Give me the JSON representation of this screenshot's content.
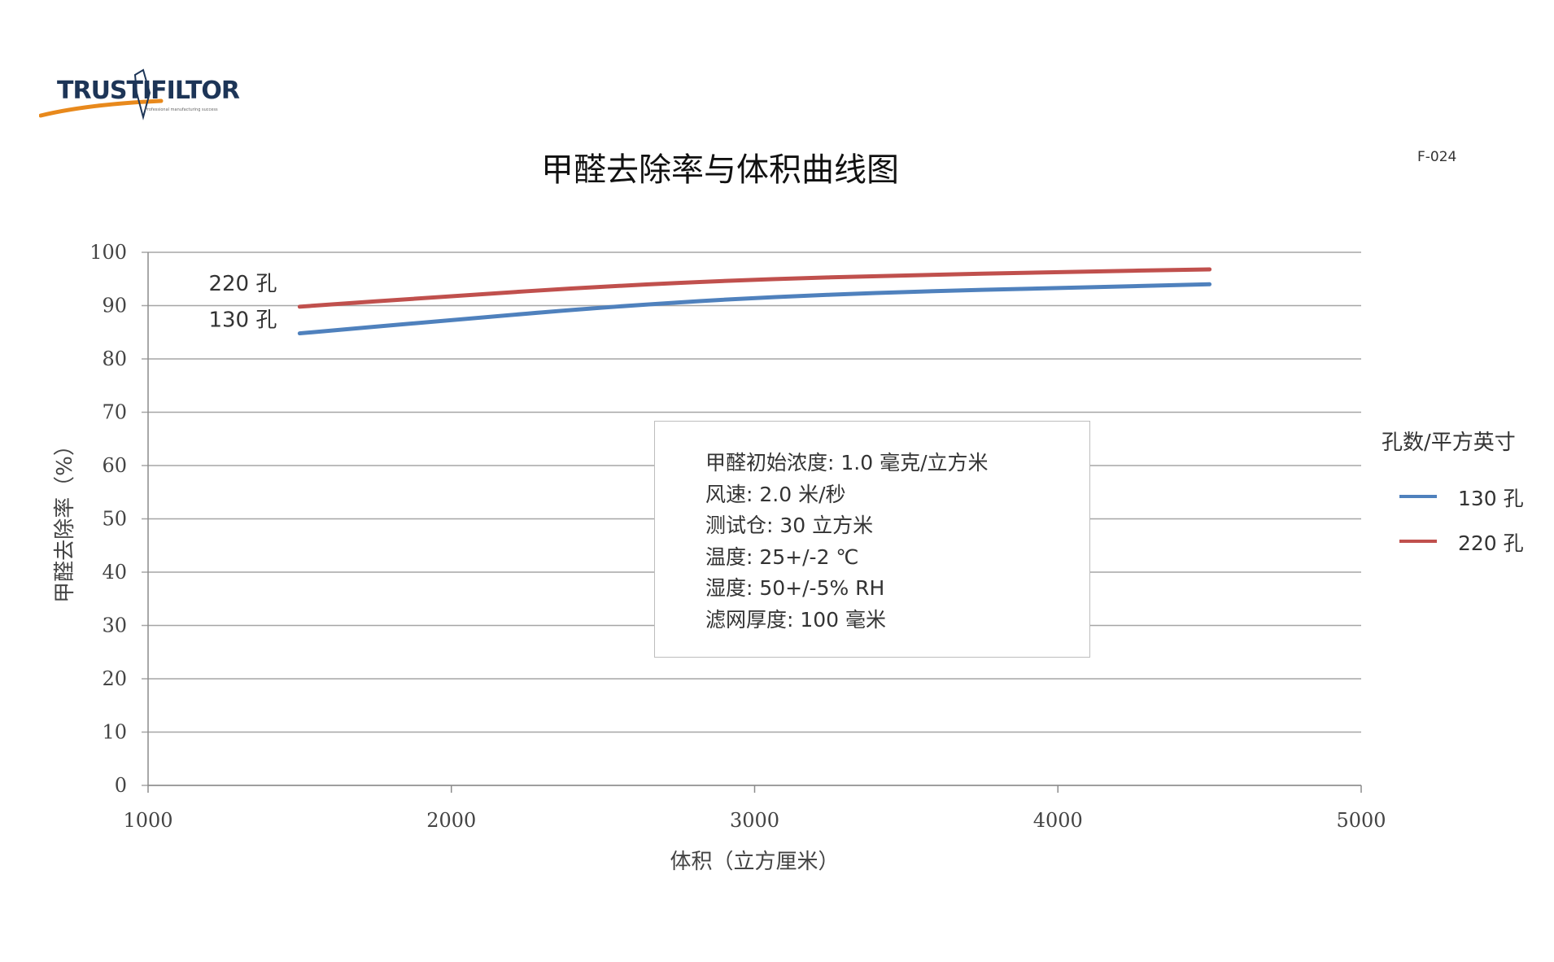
{
  "brand": {
    "name": "TRUSTIFILTOR",
    "tagline": "Professional manufacturing success",
    "code": "F-024"
  },
  "colors": {
    "series_130": "#4f81bd",
    "series_220": "#c0504d",
    "grid": "#a6a6a6",
    "brand_navy": "#1d3557",
    "brand_orange": "#e8891c"
  },
  "notes": {
    "lines": [
      "甲醛初始浓度: 1.0 毫克/立方米",
      "风速: 2.0 米/秒",
      "测试仓: 30 立方米",
      "温度: 25+/-2 ℃",
      "湿度: 50+/-5% RH",
      "滤网厚度: 100 毫米"
    ]
  },
  "chart_data": {
    "type": "line",
    "title": "甲醛去除率与体积曲线图",
    "xlabel": "体积（立方厘米）",
    "ylabel": "甲醛去除率（%）",
    "xlim": [
      1000,
      5000
    ],
    "ylim": [
      0,
      100
    ],
    "x_ticks": [
      1000,
      2000,
      3000,
      4000,
      5000
    ],
    "y_ticks": [
      0,
      10,
      20,
      30,
      40,
      50,
      60,
      70,
      80,
      90,
      100
    ],
    "grid": true,
    "legend_title": "孔数/平方英寸",
    "legend_position": "right",
    "series": [
      {
        "name": "130 孔",
        "color": "#4f81bd",
        "x": [
          1500,
          2000,
          2500,
          3000,
          3500,
          4000,
          4500
        ],
        "y": [
          84.8,
          87.3,
          89.7,
          91.5,
          92.6,
          93.3,
          94.0
        ]
      },
      {
        "name": "220 孔",
        "color": "#c0504d",
        "x": [
          1500,
          2000,
          2500,
          3000,
          3500,
          4000,
          4500
        ],
        "y": [
          89.8,
          91.8,
          93.6,
          94.9,
          95.7,
          96.3,
          96.8
        ]
      }
    ]
  }
}
